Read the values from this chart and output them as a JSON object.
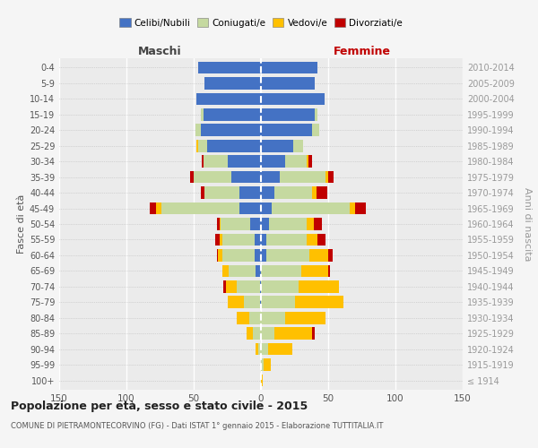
{
  "age_groups": [
    "100+",
    "95-99",
    "90-94",
    "85-89",
    "80-84",
    "75-79",
    "70-74",
    "65-69",
    "60-64",
    "55-59",
    "50-54",
    "45-49",
    "40-44",
    "35-39",
    "30-34",
    "25-29",
    "20-24",
    "15-19",
    "10-14",
    "5-9",
    "0-4"
  ],
  "birth_years": [
    "≤ 1914",
    "1915-1919",
    "1920-1924",
    "1925-1929",
    "1930-1934",
    "1935-1939",
    "1940-1944",
    "1945-1949",
    "1950-1954",
    "1955-1959",
    "1960-1964",
    "1965-1969",
    "1970-1974",
    "1975-1979",
    "1980-1984",
    "1985-1989",
    "1990-1994",
    "1995-1999",
    "2000-2004",
    "2005-2009",
    "2010-2014"
  ],
  "maschi_celibi": [
    0,
    0,
    0,
    0,
    0,
    1,
    1,
    4,
    5,
    5,
    8,
    16,
    16,
    22,
    25,
    40,
    45,
    43,
    48,
    42,
    47
  ],
  "maschi_coniugati": [
    0,
    0,
    2,
    6,
    9,
    12,
    17,
    20,
    24,
    24,
    22,
    58,
    26,
    28,
    18,
    7,
    4,
    2,
    0,
    0,
    0
  ],
  "maschi_vedovi": [
    0,
    0,
    2,
    5,
    9,
    12,
    8,
    5,
    3,
    2,
    1,
    4,
    0,
    0,
    0,
    1,
    0,
    0,
    0,
    0,
    0
  ],
  "maschi_divorziati": [
    0,
    0,
    0,
    0,
    0,
    0,
    2,
    0,
    1,
    3,
    2,
    5,
    3,
    3,
    1,
    0,
    0,
    0,
    0,
    0,
    0
  ],
  "femmine_nubili": [
    0,
    0,
    0,
    0,
    0,
    0,
    0,
    0,
    4,
    4,
    6,
    8,
    10,
    14,
    18,
    24,
    38,
    40,
    47,
    40,
    42
  ],
  "femmine_coniugate": [
    0,
    2,
    5,
    10,
    18,
    25,
    28,
    30,
    32,
    30,
    28,
    58,
    28,
    34,
    16,
    7,
    5,
    2,
    0,
    0,
    0
  ],
  "femmine_vedove": [
    1,
    5,
    18,
    28,
    30,
    36,
    30,
    20,
    14,
    8,
    5,
    4,
    3,
    2,
    1,
    0,
    0,
    0,
    0,
    0,
    0
  ],
  "femmine_divorziate": [
    0,
    0,
    0,
    2,
    0,
    0,
    0,
    1,
    3,
    6,
    6,
    8,
    8,
    4,
    3,
    0,
    0,
    0,
    0,
    0,
    0
  ],
  "c_celibi": "#4472c4",
  "c_coniugati": "#c5d9a0",
  "c_vedovi": "#ffc000",
  "c_divorziati": "#c00000",
  "xlim": 150,
  "title": "Popolazione per età, sesso e stato civile - 2015",
  "subtitle": "COMUNE DI PIETRAMONTECORVINO (FG) - Dati ISTAT 1° gennaio 2015 - Elaborazione TUTTITALIA.IT",
  "ylabel_left": "Fasce di età",
  "ylabel_right": "Anni di nascita",
  "legend_labels": [
    "Celibi/Nubili",
    "Coniugati/e",
    "Vedovi/e",
    "Divorziati/e"
  ],
  "maschi_label": "Maschi",
  "femmine_label": "Femmine"
}
